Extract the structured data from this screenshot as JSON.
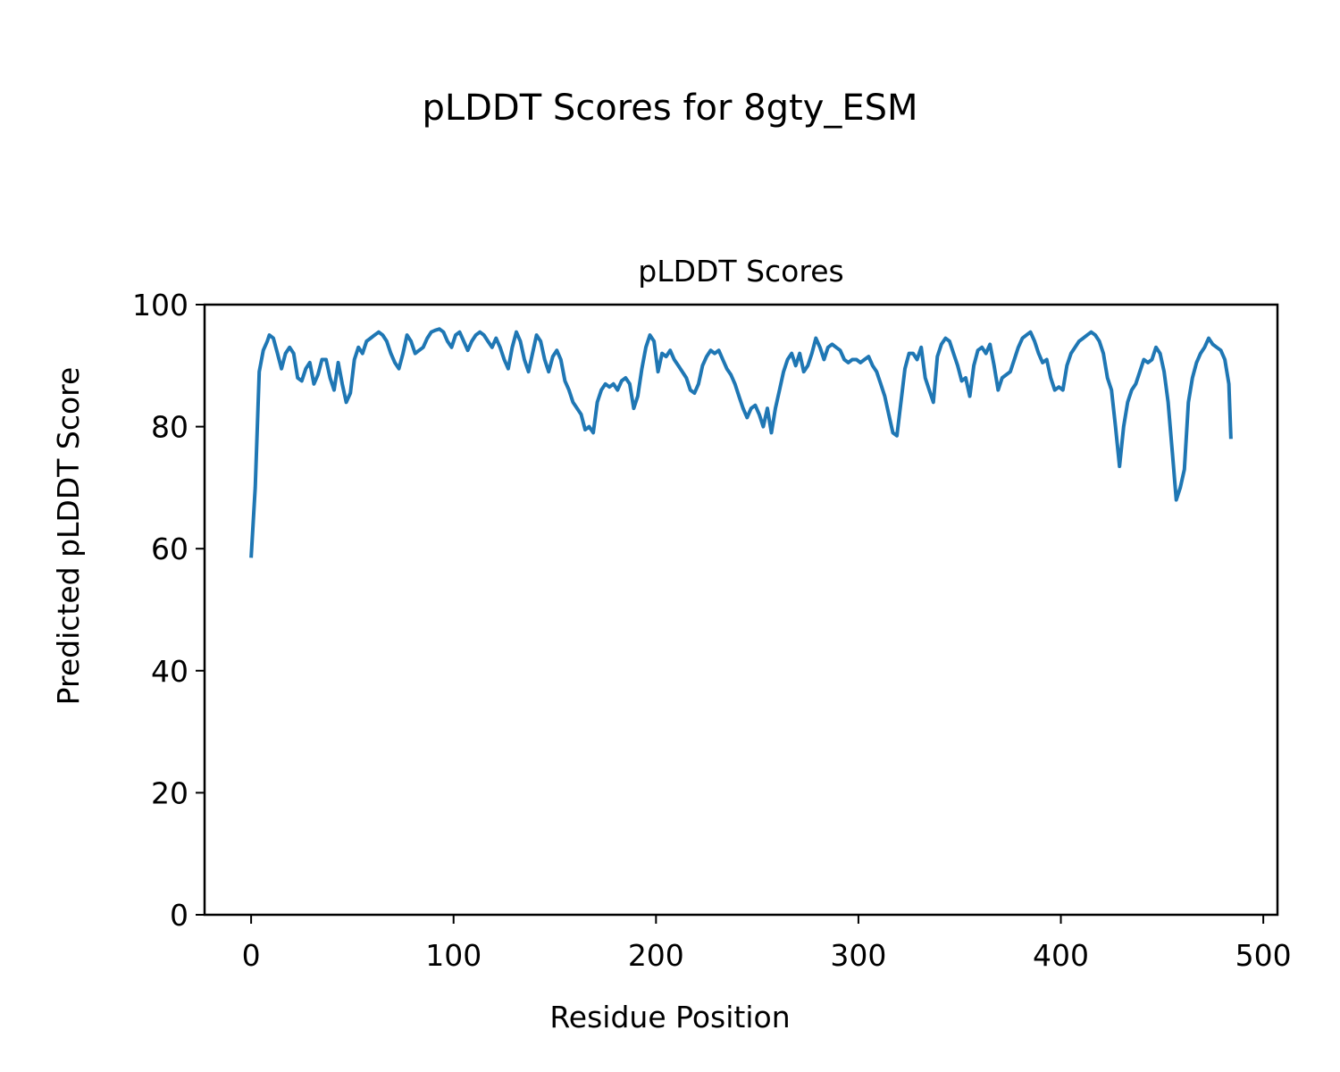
{
  "chart_data": {
    "type": "line",
    "suptitle": "pLDDT Scores for 8gty_ESM",
    "title": "pLDDT Scores",
    "xlabel": "Residue Position",
    "ylabel": "Predicted pLDDT Score",
    "xlim": [
      -23,
      507
    ],
    "ylim": [
      0,
      100
    ],
    "xticks": [
      0,
      100,
      200,
      300,
      400,
      500
    ],
    "yticks": [
      0,
      20,
      40,
      60,
      80,
      100
    ],
    "xtick_labels": [
      "0",
      "100",
      "200",
      "300",
      "400",
      "500"
    ],
    "ytick_labels": [
      "0",
      "20",
      "40",
      "60",
      "80",
      "100"
    ],
    "grid": false,
    "line_color": "#1f77b4",
    "series": [
      {
        "points": [
          [
            0,
            58.5
          ],
          [
            2,
            70
          ],
          [
            4,
            89
          ],
          [
            6,
            92.5
          ],
          [
            8,
            94
          ],
          [
            9,
            95
          ],
          [
            11,
            94.5
          ],
          [
            13,
            92
          ],
          [
            15,
            89.5
          ],
          [
            17,
            92
          ],
          [
            19,
            93
          ],
          [
            21,
            92
          ],
          [
            23,
            88
          ],
          [
            25,
            87.5
          ],
          [
            27,
            89.5
          ],
          [
            29,
            90.5
          ],
          [
            31,
            87
          ],
          [
            33,
            88.5
          ],
          [
            35,
            91
          ],
          [
            37,
            91
          ],
          [
            39,
            88
          ],
          [
            41,
            86
          ],
          [
            43,
            90.5
          ],
          [
            45,
            87
          ],
          [
            47,
            84
          ],
          [
            49,
            85.5
          ],
          [
            51,
            91
          ],
          [
            53,
            93
          ],
          [
            55,
            92
          ],
          [
            57,
            94
          ],
          [
            59,
            94.5
          ],
          [
            61,
            95
          ],
          [
            63,
            95.5
          ],
          [
            65,
            95
          ],
          [
            67,
            94
          ],
          [
            69,
            92
          ],
          [
            71,
            90.5
          ],
          [
            73,
            89.5
          ],
          [
            75,
            92
          ],
          [
            77,
            95
          ],
          [
            79,
            94
          ],
          [
            81,
            92
          ],
          [
            83,
            92.5
          ],
          [
            85,
            93
          ],
          [
            87,
            94.5
          ],
          [
            89,
            95.5
          ],
          [
            91,
            95.8
          ],
          [
            93,
            96
          ],
          [
            95,
            95.5
          ],
          [
            97,
            94
          ],
          [
            99,
            93
          ],
          [
            101,
            95
          ],
          [
            103,
            95.5
          ],
          [
            105,
            94
          ],
          [
            107,
            92.5
          ],
          [
            109,
            94
          ],
          [
            111,
            95
          ],
          [
            113,
            95.5
          ],
          [
            115,
            95
          ],
          [
            117,
            94
          ],
          [
            119,
            93
          ],
          [
            121,
            94.5
          ],
          [
            123,
            93
          ],
          [
            125,
            91
          ],
          [
            127,
            89.5
          ],
          [
            129,
            93
          ],
          [
            131,
            95.5
          ],
          [
            133,
            94
          ],
          [
            135,
            91
          ],
          [
            137,
            89
          ],
          [
            139,
            92
          ],
          [
            141,
            95
          ],
          [
            143,
            94
          ],
          [
            145,
            91
          ],
          [
            147,
            89
          ],
          [
            149,
            91.5
          ],
          [
            151,
            92.5
          ],
          [
            153,
            91
          ],
          [
            155,
            87.5
          ],
          [
            157,
            86
          ],
          [
            159,
            84
          ],
          [
            161,
            83
          ],
          [
            163,
            82
          ],
          [
            165,
            79.5
          ],
          [
            167,
            80
          ],
          [
            169,
            79
          ],
          [
            171,
            84
          ],
          [
            173,
            86
          ],
          [
            175,
            87
          ],
          [
            177,
            86.5
          ],
          [
            179,
            87
          ],
          [
            181,
            86
          ],
          [
            183,
            87.5
          ],
          [
            185,
            88
          ],
          [
            187,
            87
          ],
          [
            189,
            83
          ],
          [
            191,
            85
          ],
          [
            193,
            89.5
          ],
          [
            195,
            93
          ],
          [
            197,
            95
          ],
          [
            199,
            94
          ],
          [
            201,
            89
          ],
          [
            203,
            92
          ],
          [
            205,
            91.5
          ],
          [
            207,
            92.5
          ],
          [
            209,
            91
          ],
          [
            211,
            90
          ],
          [
            213,
            89
          ],
          [
            215,
            88
          ],
          [
            217,
            86
          ],
          [
            219,
            85.5
          ],
          [
            221,
            87
          ],
          [
            223,
            90
          ],
          [
            225,
            91.5
          ],
          [
            227,
            92.5
          ],
          [
            229,
            92
          ],
          [
            231,
            92.5
          ],
          [
            233,
            91
          ],
          [
            235,
            89.5
          ],
          [
            237,
            88.5
          ],
          [
            239,
            87
          ],
          [
            241,
            85
          ],
          [
            243,
            83
          ],
          [
            245,
            81.5
          ],
          [
            247,
            83
          ],
          [
            249,
            83.5
          ],
          [
            251,
            82
          ],
          [
            253,
            80
          ],
          [
            255,
            83
          ],
          [
            257,
            79
          ],
          [
            259,
            83
          ],
          [
            261,
            86
          ],
          [
            263,
            89
          ],
          [
            265,
            91
          ],
          [
            267,
            92
          ],
          [
            269,
            90
          ],
          [
            271,
            92
          ],
          [
            273,
            89
          ],
          [
            275,
            90
          ],
          [
            277,
            92
          ],
          [
            279,
            94.5
          ],
          [
            281,
            93
          ],
          [
            283,
            91
          ],
          [
            285,
            93
          ],
          [
            287,
            93.5
          ],
          [
            289,
            93
          ],
          [
            291,
            92.5
          ],
          [
            293,
            91
          ],
          [
            295,
            90.5
          ],
          [
            297,
            91
          ],
          [
            299,
            91
          ],
          [
            301,
            90.5
          ],
          [
            303,
            91
          ],
          [
            305,
            91.5
          ],
          [
            307,
            90
          ],
          [
            309,
            89
          ],
          [
            311,
            87
          ],
          [
            313,
            85
          ],
          [
            315,
            82
          ],
          [
            317,
            79
          ],
          [
            319,
            78.5
          ],
          [
            321,
            84
          ],
          [
            323,
            89.5
          ],
          [
            325,
            92
          ],
          [
            327,
            92
          ],
          [
            329,
            91
          ],
          [
            331,
            93
          ],
          [
            333,
            88
          ],
          [
            335,
            86
          ],
          [
            337,
            84
          ],
          [
            339,
            91.5
          ],
          [
            341,
            93.5
          ],
          [
            343,
            94.5
          ],
          [
            345,
            94
          ],
          [
            347,
            92
          ],
          [
            349,
            90
          ],
          [
            351,
            87.5
          ],
          [
            353,
            88
          ],
          [
            355,
            85
          ],
          [
            357,
            90
          ],
          [
            359,
            92.5
          ],
          [
            361,
            93
          ],
          [
            363,
            92
          ],
          [
            365,
            93.5
          ],
          [
            367,
            90
          ],
          [
            369,
            86
          ],
          [
            371,
            88
          ],
          [
            373,
            88.5
          ],
          [
            375,
            89
          ],
          [
            377,
            91
          ],
          [
            379,
            93
          ],
          [
            381,
            94.5
          ],
          [
            383,
            95
          ],
          [
            385,
            95.5
          ],
          [
            387,
            94
          ],
          [
            389,
            92
          ],
          [
            391,
            90.5
          ],
          [
            393,
            91
          ],
          [
            395,
            88
          ],
          [
            397,
            86
          ],
          [
            399,
            86.5
          ],
          [
            401,
            86
          ],
          [
            403,
            90
          ],
          [
            405,
            92
          ],
          [
            407,
            93
          ],
          [
            409,
            94
          ],
          [
            411,
            94.5
          ],
          [
            413,
            95
          ],
          [
            415,
            95.5
          ],
          [
            417,
            95
          ],
          [
            419,
            94
          ],
          [
            421,
            92
          ],
          [
            423,
            88
          ],
          [
            425,
            86
          ],
          [
            427,
            80
          ],
          [
            429,
            73.5
          ],
          [
            431,
            80
          ],
          [
            433,
            84
          ],
          [
            435,
            86
          ],
          [
            437,
            87
          ],
          [
            439,
            89
          ],
          [
            441,
            91
          ],
          [
            443,
            90.5
          ],
          [
            445,
            91
          ],
          [
            447,
            93
          ],
          [
            449,
            92
          ],
          [
            451,
            89
          ],
          [
            453,
            84
          ],
          [
            455,
            76
          ],
          [
            457,
            68
          ],
          [
            459,
            70
          ],
          [
            461,
            73
          ],
          [
            463,
            84
          ],
          [
            465,
            88
          ],
          [
            467,
            90.5
          ],
          [
            469,
            92
          ],
          [
            471,
            93
          ],
          [
            473,
            94.5
          ],
          [
            475,
            93.5
          ],
          [
            477,
            93
          ],
          [
            479,
            92.5
          ],
          [
            481,
            91
          ],
          [
            483,
            87
          ],
          [
            484,
            78
          ]
        ]
      }
    ]
  }
}
